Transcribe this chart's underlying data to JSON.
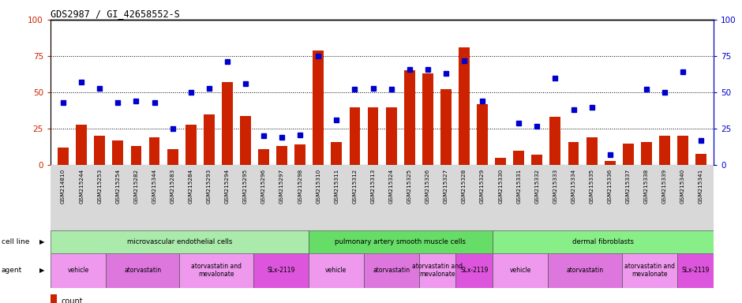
{
  "title": "GDS2987 / GI_42658552-S",
  "gsm_labels": [
    "GSM214810",
    "GSM215244",
    "GSM215253",
    "GSM215254",
    "GSM215282",
    "GSM215344",
    "GSM215283",
    "GSM215284",
    "GSM215293",
    "GSM215294",
    "GSM215295",
    "GSM215296",
    "GSM215297",
    "GSM215298",
    "GSM215310",
    "GSM215311",
    "GSM215312",
    "GSM215313",
    "GSM215324",
    "GSM215325",
    "GSM215326",
    "GSM215327",
    "GSM215328",
    "GSM215329",
    "GSM215330",
    "GSM215331",
    "GSM215332",
    "GSM215333",
    "GSM215334",
    "GSM215335",
    "GSM215336",
    "GSM215337",
    "GSM215338",
    "GSM215339",
    "GSM215340",
    "GSM215341"
  ],
  "bar_values": [
    12,
    28,
    20,
    17,
    13,
    19,
    11,
    28,
    35,
    57,
    34,
    11,
    13,
    14,
    79,
    16,
    40,
    40,
    40,
    65,
    63,
    52,
    81,
    42,
    5,
    10,
    7,
    33,
    16,
    19,
    3,
    15,
    16,
    20,
    20,
    8
  ],
  "percentile_values": [
    43,
    57,
    53,
    43,
    44,
    43,
    25,
    50,
    53,
    71,
    56,
    20,
    19,
    21,
    75,
    31,
    52,
    53,
    52,
    66,
    66,
    63,
    72,
    44,
    null,
    29,
    27,
    60,
    38,
    40,
    7,
    null,
    52,
    50,
    64,
    17
  ],
  "bar_color": "#cc2200",
  "percentile_color": "#0000cc",
  "ylim_left": [
    0,
    100
  ],
  "ylim_right": [
    0,
    100
  ],
  "yticks": [
    0,
    25,
    50,
    75,
    100
  ],
  "cell_line_groups": [
    {
      "label": "microvascular endothelial cells",
      "start": 0,
      "end": 14,
      "color": "#aaeaaa"
    },
    {
      "label": "pulmonary artery smooth muscle cells",
      "start": 14,
      "end": 24,
      "color": "#66dd66"
    },
    {
      "label": "dermal fibroblasts",
      "start": 24,
      "end": 36,
      "color": "#88ee88"
    }
  ],
  "agent_groups": [
    {
      "label": "vehicle",
      "start": 0,
      "end": 3,
      "color": "#ee99ee"
    },
    {
      "label": "atorvastatin",
      "start": 3,
      "end": 7,
      "color": "#dd77dd"
    },
    {
      "label": "atorvastatin and\nmevalonate",
      "start": 7,
      "end": 11,
      "color": "#ee99ee"
    },
    {
      "label": "SLx-2119",
      "start": 11,
      "end": 14,
      "color": "#dd55dd"
    },
    {
      "label": "vehicle",
      "start": 14,
      "end": 17,
      "color": "#ee99ee"
    },
    {
      "label": "atorvastatin",
      "start": 17,
      "end": 20,
      "color": "#dd77dd"
    },
    {
      "label": "atorvastatin and\nmevalonate",
      "start": 20,
      "end": 22,
      "color": "#ee99ee"
    },
    {
      "label": "SLx-2119",
      "start": 22,
      "end": 24,
      "color": "#dd55dd"
    },
    {
      "label": "vehicle",
      "start": 24,
      "end": 27,
      "color": "#ee99ee"
    },
    {
      "label": "atorvastatin",
      "start": 27,
      "end": 31,
      "color": "#dd77dd"
    },
    {
      "label": "atorvastatin and\nmevalonate",
      "start": 31,
      "end": 34,
      "color": "#ee99ee"
    },
    {
      "label": "SLx-2119",
      "start": 34,
      "end": 36,
      "color": "#dd55dd"
    }
  ],
  "legend_count_color": "#cc2200",
  "legend_pct_color": "#0000cc",
  "tick_label_color_left": "#cc2200",
  "tick_label_color_right": "#0000cc",
  "bar_width": 0.6,
  "xtick_bg": "#dddddd",
  "cell_line_label_left": "cell line",
  "agent_label_left": "agent"
}
